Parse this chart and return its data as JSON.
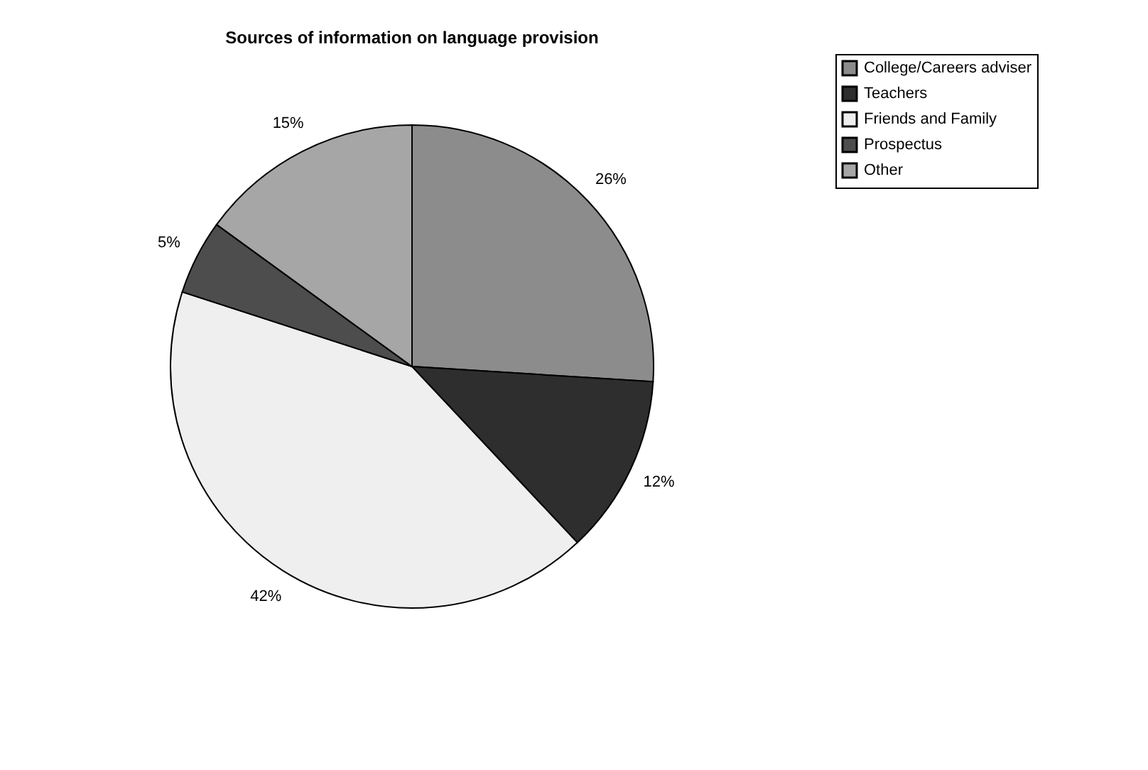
{
  "chart_data": {
    "type": "pie",
    "title": "Sources of information on language provision",
    "categories": [
      "College/Careers adviser",
      "Teachers",
      "Friends and Family",
      "Prospectus",
      "Other"
    ],
    "values": [
      26,
      12,
      42,
      5,
      15
    ],
    "colors": [
      "#8c8c8c",
      "#2e2e2e",
      "#efefef",
      "#4d4d4d",
      "#a6a6a6"
    ],
    "value_labels": [
      "26%",
      "12%",
      "42%",
      "5%",
      "15%"
    ],
    "legend": "right"
  }
}
